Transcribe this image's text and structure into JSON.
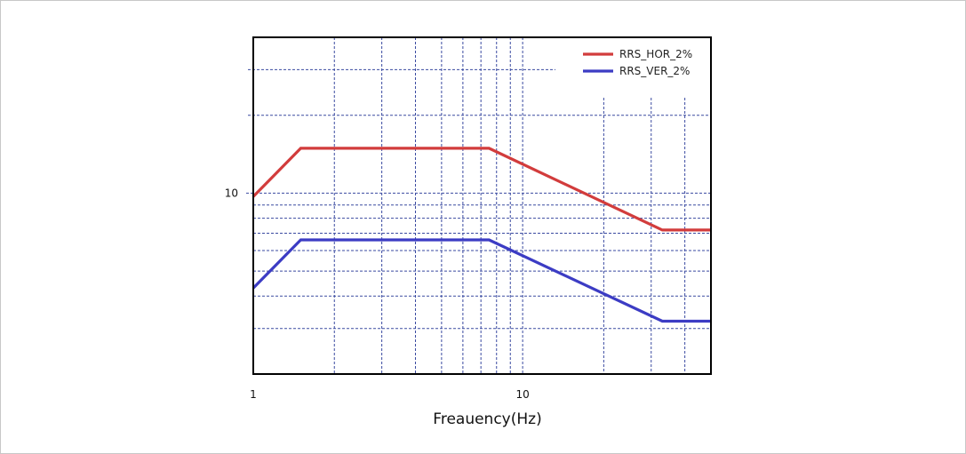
{
  "chart_data": {
    "type": "line",
    "xscale": "log",
    "yscale": "log",
    "xlim": [
      1,
      50
    ],
    "ylim": [
      2,
      40
    ],
    "xlabel": "Freauency(Hz)",
    "ylabel": "",
    "x_tick_labels": [
      {
        "value": 1,
        "label": "1"
      },
      {
        "value": 10,
        "label": "10"
      }
    ],
    "y_tick_labels": [
      {
        "value": 10,
        "label": "10"
      }
    ],
    "grid": true,
    "legend_position": "top-right",
    "series": [
      {
        "name": "RRS_HOR_2%",
        "color": "#d23c3c",
        "points": [
          [
            1,
            9.7
          ],
          [
            1.5,
            14.9
          ],
          [
            7.5,
            14.9
          ],
          [
            33,
            7.2
          ],
          [
            50,
            7.2
          ]
        ]
      },
      {
        "name": "RRS_VER_2%",
        "color": "#3c3cc4",
        "points": [
          [
            1,
            4.3
          ],
          [
            1.5,
            6.6
          ],
          [
            7.5,
            6.6
          ],
          [
            33,
            3.2
          ],
          [
            50,
            3.2
          ]
        ]
      }
    ],
    "colors": {
      "grid": "#3a4aa0",
      "axis": "#000000"
    }
  }
}
